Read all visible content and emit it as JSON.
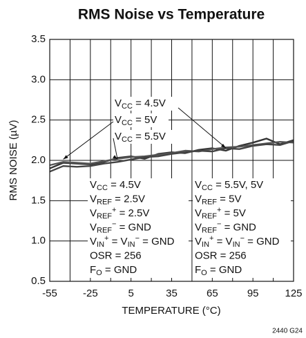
{
  "chart_data": {
    "type": "line",
    "title": "RMS Noise vs Temperature",
    "xlabel": "TEMPERATURE (°C)",
    "ylabel": "RMS NOISE (µV)",
    "footnote": "2440 G24",
    "x": [
      -55,
      -45,
      -35,
      -25,
      -15,
      -5,
      5,
      15,
      25,
      35,
      45,
      55,
      65,
      75,
      85,
      95,
      105,
      115,
      125
    ],
    "series": [
      {
        "name": [
          {
            "text": "V"
          },
          {
            "text": "CC",
            "shift": "sub"
          },
          {
            "text": " = 4.5V"
          }
        ],
        "color": "#333333",
        "values": [
          1.9,
          1.97,
          1.96,
          1.95,
          1.98,
          2.03,
          2.05,
          2.02,
          2.08,
          2.1,
          2.09,
          2.13,
          2.15,
          2.12,
          2.18,
          2.22,
          2.27,
          2.2,
          2.25
        ]
      },
      {
        "name": [
          {
            "text": "V"
          },
          {
            "text": "CC",
            "shift": "sub"
          },
          {
            "text": " = 5V"
          }
        ],
        "color": "#555555",
        "values": [
          1.94,
          1.98,
          1.97,
          1.96,
          1.99,
          2.02,
          2.04,
          2.05,
          2.07,
          2.09,
          2.12,
          2.11,
          2.14,
          2.16,
          2.17,
          2.19,
          2.21,
          2.23,
          2.22
        ]
      },
      {
        "name": [
          {
            "text": "V"
          },
          {
            "text": "CC",
            "shift": "sub"
          },
          {
            "text": " = 5.5V"
          }
        ],
        "color": "#444444",
        "values": [
          1.86,
          1.93,
          1.92,
          1.93,
          1.96,
          1.98,
          2.01,
          2.04,
          2.05,
          2.08,
          2.1,
          2.12,
          2.11,
          2.15,
          2.14,
          2.18,
          2.2,
          2.19,
          2.24
        ]
      }
    ],
    "xlim": [
      -55,
      125
    ],
    "xticks": [
      -55,
      -25,
      5,
      35,
      65,
      95,
      125
    ],
    "x_minor_ticks": [
      -40,
      -10,
      20,
      50,
      80,
      110
    ],
    "ylim": [
      0.5,
      3.5
    ],
    "yticks": [
      0.5,
      {
        "value": 1,
        "label": "1.0"
      },
      1.5,
      {
        "value": 2,
        "label": "2.0"
      },
      2.5,
      {
        "value": 3,
        "label": "3.0"
      },
      3.5
    ],
    "grid": true,
    "conditions": [
      [
        [
          {
            "text": "V"
          },
          {
            "text": "CC",
            "shift": "sub"
          },
          {
            "text": " = 4.5V"
          }
        ],
        [
          {
            "text": "V"
          },
          {
            "text": "REF",
            "shift": "sub"
          },
          {
            "text": " = 2.5V"
          }
        ],
        [
          {
            "text": "V"
          },
          {
            "text": "REF",
            "shift": "sub"
          },
          {
            "text": "+",
            "shift": "super"
          },
          {
            "text": " = 2.5V"
          }
        ],
        [
          {
            "text": "V"
          },
          {
            "text": "REF",
            "shift": "sub"
          },
          {
            "text": "−",
            "shift": "super"
          },
          {
            "text": " = GND"
          }
        ],
        [
          {
            "text": "V"
          },
          {
            "text": "IN",
            "shift": "sub"
          },
          {
            "text": "+",
            "shift": "super"
          },
          {
            "text": " = V"
          },
          {
            "text": "IN",
            "shift": "sub"
          },
          {
            "text": "−",
            "shift": "super"
          },
          {
            "text": " = GND"
          }
        ],
        [
          {
            "text": "OSR = 256"
          }
        ],
        [
          {
            "text": "F"
          },
          {
            "text": "O",
            "shift": "sub"
          },
          {
            "text": " = GND"
          }
        ]
      ],
      [
        [
          {
            "text": "V"
          },
          {
            "text": "CC",
            "shift": "sub"
          },
          {
            "text": " = 5.5V, 5V"
          }
        ],
        [
          {
            "text": "V"
          },
          {
            "text": "REF",
            "shift": "sub"
          },
          {
            "text": " = 5V"
          }
        ],
        [
          {
            "text": "V"
          },
          {
            "text": "REF",
            "shift": "sub"
          },
          {
            "text": "+",
            "shift": "super"
          },
          {
            "text": " = 5V"
          }
        ],
        [
          {
            "text": "V"
          },
          {
            "text": "REF",
            "shift": "sub"
          },
          {
            "text": "−",
            "shift": "super"
          },
          {
            "text": " = GND"
          }
        ],
        [
          {
            "text": "V"
          },
          {
            "text": "IN",
            "shift": "sub"
          },
          {
            "text": "+",
            "shift": "super"
          },
          {
            "text": " = V"
          },
          {
            "text": "IN",
            "shift": "sub"
          },
          {
            "text": "−",
            "shift": "super"
          },
          {
            "text": " = GND"
          }
        ],
        [
          {
            "text": "OSR = 256"
          }
        ],
        [
          {
            "text": "F"
          },
          {
            "text": "O",
            "shift": "sub"
          },
          {
            "text": " = GND"
          }
        ]
      ]
    ]
  }
}
